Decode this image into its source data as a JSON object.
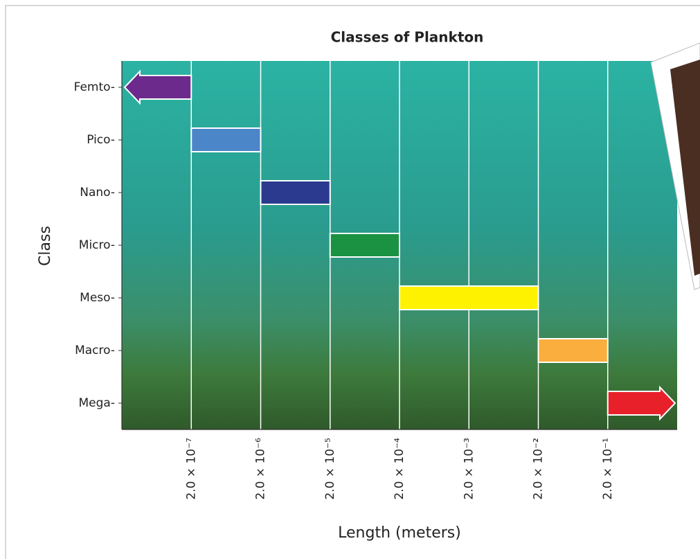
{
  "chart_data": {
    "type": "range-bar",
    "title": "Classes of Plankton",
    "x_label": "Length (meters)",
    "y_label": "Class",
    "categories": [
      "Femto-",
      "Pico-",
      "Nano-",
      "Micro-",
      "Meso-",
      "Macro-",
      "Mega-"
    ],
    "low": [
      null,
      2e-07,
      2e-06,
      2e-05,
      0.0002,
      0.02,
      0.2
    ],
    "high": [
      2e-07,
      2e-06,
      2e-05,
      0.0002,
      0.02,
      0.2,
      null
    ],
    "colors": [
      "#6b2a8c",
      "#4a86c8",
      "#2b3a8f",
      "#1a9241",
      "#fff200",
      "#f9ae3e",
      "#e8202a"
    ],
    "xscale": "log",
    "xlim": [
      2e-08,
      2
    ],
    "xticks": [
      {
        "value": 2e-07,
        "label": "2.0 × 10⁻⁷"
      },
      {
        "value": 2e-06,
        "label": "2.0 × 10⁻⁶"
      },
      {
        "value": 2e-05,
        "label": "2.0 × 10⁻⁵"
      },
      {
        "value": 0.0002,
        "label": "2.0 × 10⁻⁴"
      },
      {
        "value": 0.002,
        "label": "2.0 × 10⁻³"
      },
      {
        "value": 0.02,
        "label": "2.0 × 10⁻²"
      },
      {
        "value": 0.2,
        "label": "2.0 × 10⁻¹"
      }
    ],
    "grid": true
  }
}
